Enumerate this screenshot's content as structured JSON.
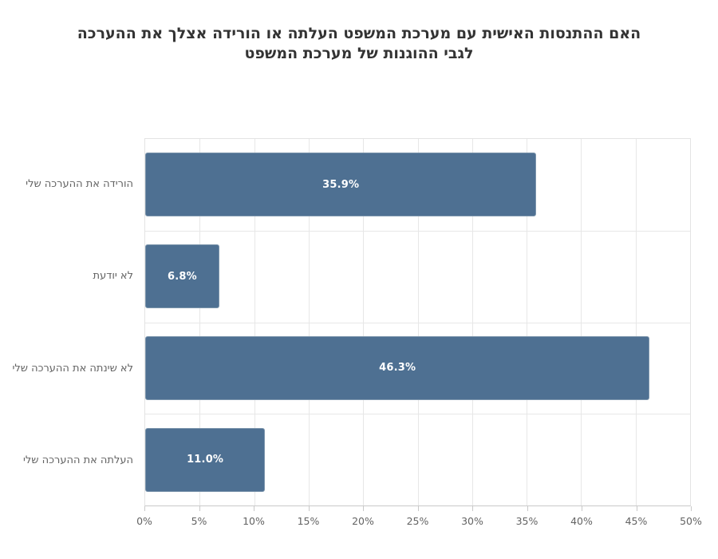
{
  "page": {
    "background": "#ffffff"
  },
  "chart_data": {
    "type": "bar",
    "orientation": "horizontal",
    "title": "האם ההתנסות האישית עם מערכת המשפט העלתה או הורידה אצלך את ההערכה לגבי ההוגנות של מערכת המשפט",
    "title_lines": [
      "האם ההתנסות האישית עם מערכת המשפט העלתה או הורידה אצלך את ההערכה",
      "לגבי ההוגנות של מערכת המשפט"
    ],
    "categories": [
      "הורידה את ההערכה שלי",
      "לא יודעת",
      "לא שינתה את ההערכה שלי",
      "העלתה את ההערכה שלי"
    ],
    "values": [
      35.9,
      6.8,
      46.3,
      11.0
    ],
    "value_labels": [
      "35.9%",
      "6.8%",
      "46.3%",
      "11.0%"
    ],
    "xlabel": "",
    "ylabel": "",
    "xlim": [
      0,
      50
    ],
    "xticks": [
      {
        "value": 0,
        "label": "0%"
      },
      {
        "value": 5,
        "label": "5%"
      },
      {
        "value": 10,
        "label": "10%"
      },
      {
        "value": 15,
        "label": "15%"
      },
      {
        "value": 20,
        "label": "20%"
      },
      {
        "value": 25,
        "label": "25%"
      },
      {
        "value": 30,
        "label": "30%"
      },
      {
        "value": 35,
        "label": "35%"
      },
      {
        "value": 40,
        "label": "40%"
      },
      {
        "value": 45,
        "label": "45%"
      },
      {
        "value": 50,
        "label": "50%"
      }
    ],
    "grid": true,
    "legend": "none",
    "colors": {
      "bar_fill": "#4e7092",
      "bar_border": "#7d96ad",
      "value_label": "#ffffff",
      "grid_line": "#e7e7e7",
      "axis_line": "#c9c9c9",
      "tick_label": "#636363",
      "category_label": "#636363",
      "title": "#333333"
    }
  }
}
